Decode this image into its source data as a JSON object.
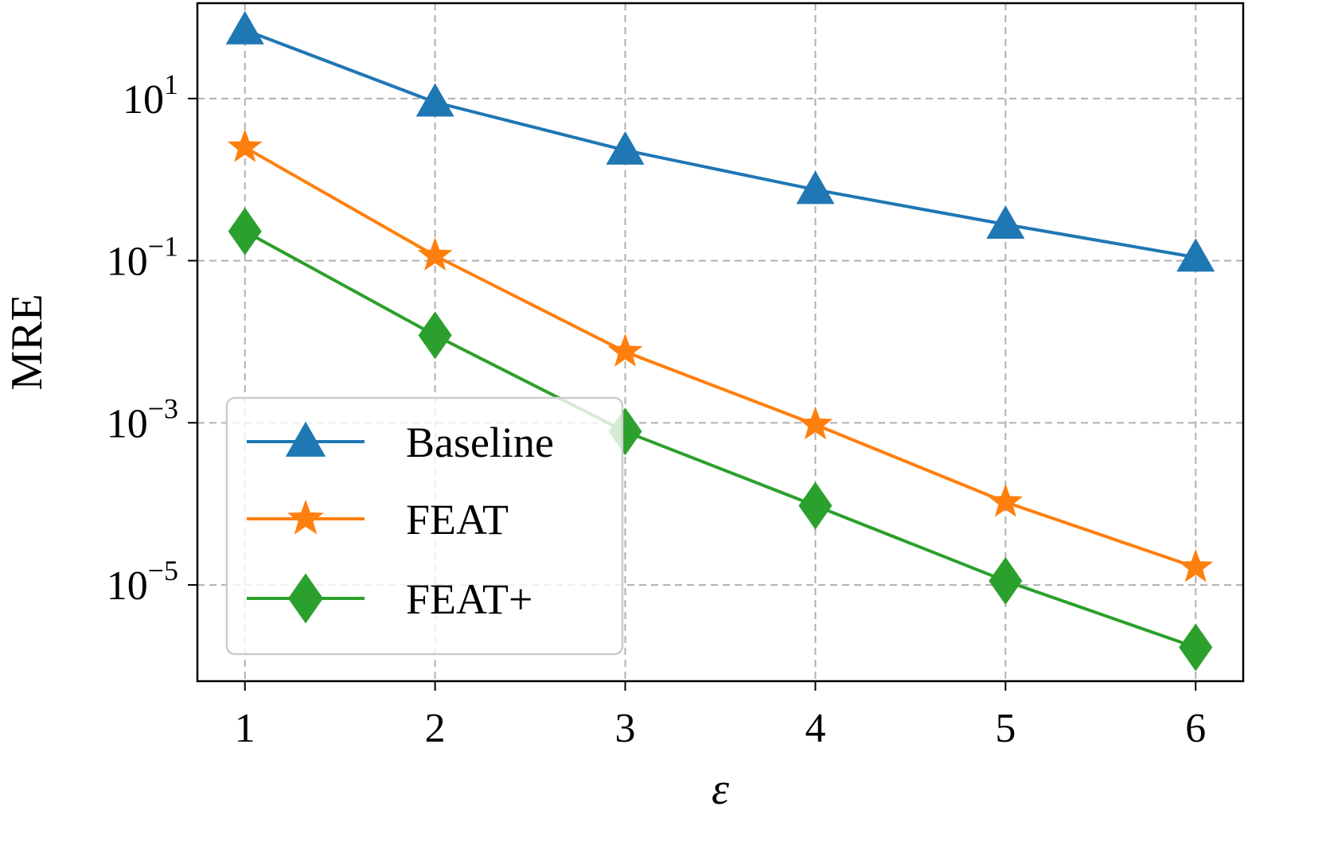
{
  "chart_data": {
    "type": "line",
    "x": [
      1,
      2,
      3,
      4,
      5,
      6
    ],
    "xlabel": "ε",
    "ylabel": "MRE",
    "yscale": "log",
    "xlim": [
      0.75,
      6.25
    ],
    "ylim": [
      6.5e-07,
      150
    ],
    "xticks": [
      "1",
      "2",
      "3",
      "4",
      "5",
      "6"
    ],
    "yticks": [
      {
        "value": 10,
        "base": "10",
        "exp": "1"
      },
      {
        "value": 0.1,
        "base": "10",
        "exp": "−1"
      },
      {
        "value": 0.001,
        "base": "10",
        "exp": "−3"
      },
      {
        "value": 1e-05,
        "base": "10",
        "exp": "−5"
      }
    ],
    "grid": true,
    "legend_position": "lower-left",
    "series": [
      {
        "name": "Baseline",
        "color": "#1f77b4",
        "marker": "triangle",
        "values": [
          70,
          9.0,
          2.3,
          0.75,
          0.28,
          0.11
        ]
      },
      {
        "name": "FEAT",
        "color": "#ff7f0e",
        "marker": "star",
        "values": [
          2.5,
          0.115,
          0.0075,
          0.00095,
          0.000105,
          1.65e-05
        ]
      },
      {
        "name": "FEAT+",
        "color": "#2ca02c",
        "marker": "diamond",
        "values": [
          0.23,
          0.012,
          0.00078,
          9.5e-05,
          1.12e-05,
          1.7e-06
        ]
      }
    ]
  }
}
